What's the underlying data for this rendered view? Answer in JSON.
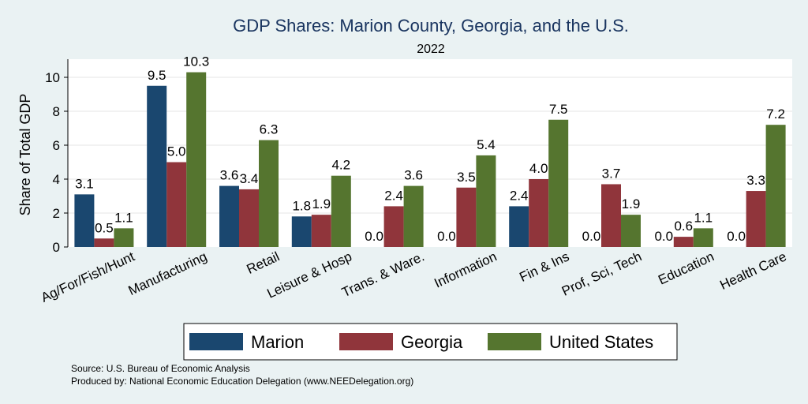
{
  "chart_data": {
    "type": "bar",
    "title": "GDP Shares: Marion County, Georgia, and the U.S.",
    "subtitle": "2022",
    "ylabel": "Share of Total GDP",
    "xlabel": "",
    "ylim": [
      0,
      11
    ],
    "yticks": [
      0,
      2,
      4,
      6,
      8,
      10
    ],
    "grid": true,
    "legend_position": "bottom",
    "categories": [
      "Ag/For/Fish/Hunt",
      "Manufacturing",
      "Retail",
      "Leisure & Hosp",
      "Trans. & Ware.",
      "Information",
      "Fin & Ins",
      "Prof, Sci, Tech",
      "Education",
      "Health Care"
    ],
    "series": [
      {
        "name": "Marion",
        "color": "#1a476f",
        "values": [
          3.1,
          9.5,
          3.6,
          1.8,
          0.0,
          0.0,
          2.4,
          0.0,
          0.0,
          0.0
        ],
        "labels": [
          "3.1",
          "9.5",
          "3.6",
          "1.8",
          "0.0",
          "0.0",
          "2.4",
          "0.0",
          "0.0",
          "0.0"
        ]
      },
      {
        "name": "Georgia",
        "color": "#90353b",
        "values": [
          0.5,
          5.0,
          3.4,
          1.9,
          2.4,
          3.5,
          4.0,
          3.7,
          0.6,
          3.3
        ],
        "labels": [
          "0.5",
          "5.0",
          "3.4",
          "1.9",
          "2.4",
          "3.5",
          "4.0",
          "3.7",
          "0.6",
          "3.3"
        ]
      },
      {
        "name": "United States",
        "color": "#55752f",
        "values": [
          1.1,
          10.3,
          6.3,
          4.2,
          3.6,
          5.4,
          7.5,
          1.9,
          1.1,
          7.2
        ],
        "labels": [
          "1.1",
          "10.3",
          "6.3",
          "4.2",
          "3.6",
          "5.4",
          "7.5",
          "1.9",
          "1.1",
          "7.2"
        ]
      }
    ]
  },
  "notes": {
    "source": "Source: U.S. Bureau of Economic Analysis",
    "produced_by": "Produced by: National Economic Education Delegation (www.NEEDelegation.org)"
  }
}
